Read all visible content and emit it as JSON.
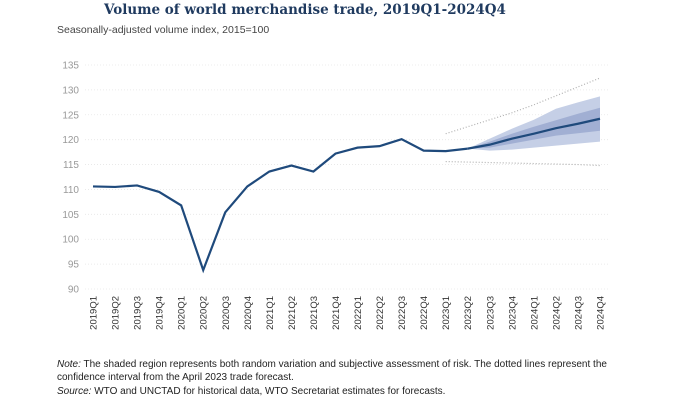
{
  "chart_data": {
    "type": "line",
    "title": "Volume of world merchandise trade, 2019Q1-2024Q4",
    "subtitle": "Seasonally-adjusted volume index, 2015=100",
    "xlabel": "",
    "ylabel": "",
    "ylim": [
      90,
      135
    ],
    "yticks": [
      90,
      95,
      100,
      105,
      110,
      115,
      120,
      125,
      130,
      135
    ],
    "grid": true,
    "categories": [
      "2019Q1",
      "2019Q2",
      "2019Q3",
      "2019Q4",
      "2020Q1",
      "2020Q2",
      "2020Q3",
      "2020Q4",
      "2021Q1",
      "2021Q2",
      "2021Q3",
      "2021Q4",
      "2022Q1",
      "2022Q2",
      "2022Q3",
      "2022Q4",
      "2023Q1",
      "2023Q2",
      "2023Q3",
      "2023Q4",
      "2024Q1",
      "2024Q2",
      "2024Q3",
      "2024Q4"
    ],
    "series": [
      {
        "name": "Historical",
        "values": [
          110.6,
          110.5,
          110.8,
          109.5,
          106.8,
          93.8,
          105.4,
          110.6,
          113.6,
          114.8,
          113.6,
          117.2,
          118.4,
          118.7,
          120.1,
          117.8,
          117.7,
          118.2,
          null,
          null,
          null,
          null,
          null,
          null
        ]
      },
      {
        "name": "Forecast",
        "values": [
          null,
          null,
          null,
          null,
          null,
          null,
          null,
          null,
          null,
          null,
          null,
          null,
          null,
          null,
          null,
          null,
          null,
          118.2,
          119.0,
          120.2,
          121.2,
          122.3,
          123.2,
          124.2
        ]
      },
      {
        "name": "Outer band upper",
        "values": [
          null,
          null,
          null,
          null,
          null,
          null,
          null,
          null,
          null,
          null,
          null,
          null,
          null,
          null,
          null,
          null,
          null,
          118.2,
          120.2,
          122.2,
          124.0,
          126.2,
          127.5,
          128.7
        ]
      },
      {
        "name": "Outer band lower",
        "values": [
          null,
          null,
          null,
          null,
          null,
          null,
          null,
          null,
          null,
          null,
          null,
          null,
          null,
          null,
          null,
          null,
          null,
          118.2,
          117.8,
          118.0,
          118.4,
          118.8,
          119.2,
          119.6
        ]
      },
      {
        "name": "Inner band upper",
        "values": [
          null,
          null,
          null,
          null,
          null,
          null,
          null,
          null,
          null,
          null,
          null,
          null,
          null,
          null,
          null,
          null,
          null,
          118.2,
          119.6,
          121.2,
          122.6,
          123.9,
          125.2,
          126.4
        ]
      },
      {
        "name": "Inner band lower",
        "values": [
          null,
          null,
          null,
          null,
          null,
          null,
          null,
          null,
          null,
          null,
          null,
          null,
          null,
          null,
          null,
          null,
          null,
          118.2,
          118.4,
          119.2,
          120.0,
          120.8,
          121.3,
          121.8
        ]
      },
      {
        "name": "April 2023 forecast CI upper (dotted)",
        "values": [
          null,
          null,
          null,
          null,
          null,
          null,
          null,
          null,
          null,
          null,
          null,
          null,
          null,
          null,
          null,
          null,
          121.2,
          122.6,
          124.0,
          125.4,
          127.0,
          128.8,
          130.6,
          132.4
        ]
      },
      {
        "name": "April 2023 forecast CI lower (dotted)",
        "values": [
          null,
          null,
          null,
          null,
          null,
          null,
          null,
          null,
          null,
          null,
          null,
          null,
          null,
          null,
          null,
          null,
          115.6,
          115.5,
          115.4,
          115.3,
          115.2,
          115.1,
          115.0,
          114.8
        ]
      }
    ],
    "colors": {
      "line": "#1f4a7c",
      "outer_band": "#c5cfe6",
      "inner_band": "#9aa9cf",
      "dotted": "#b0b0b0",
      "grid": "#e6e6e6",
      "tick_label": "#999999"
    },
    "legend": "none"
  },
  "notes": {
    "note_label": "Note:",
    "note_text": " The shaded region represents both random variation and subjective assessment of risk. The dotted lines represent the confidence interval from the April 2023 trade forecast.",
    "source_label": "Source:",
    "source_text": " WTO and UNCTAD for historical data, WTO Secretariat estimates for forecasts."
  }
}
